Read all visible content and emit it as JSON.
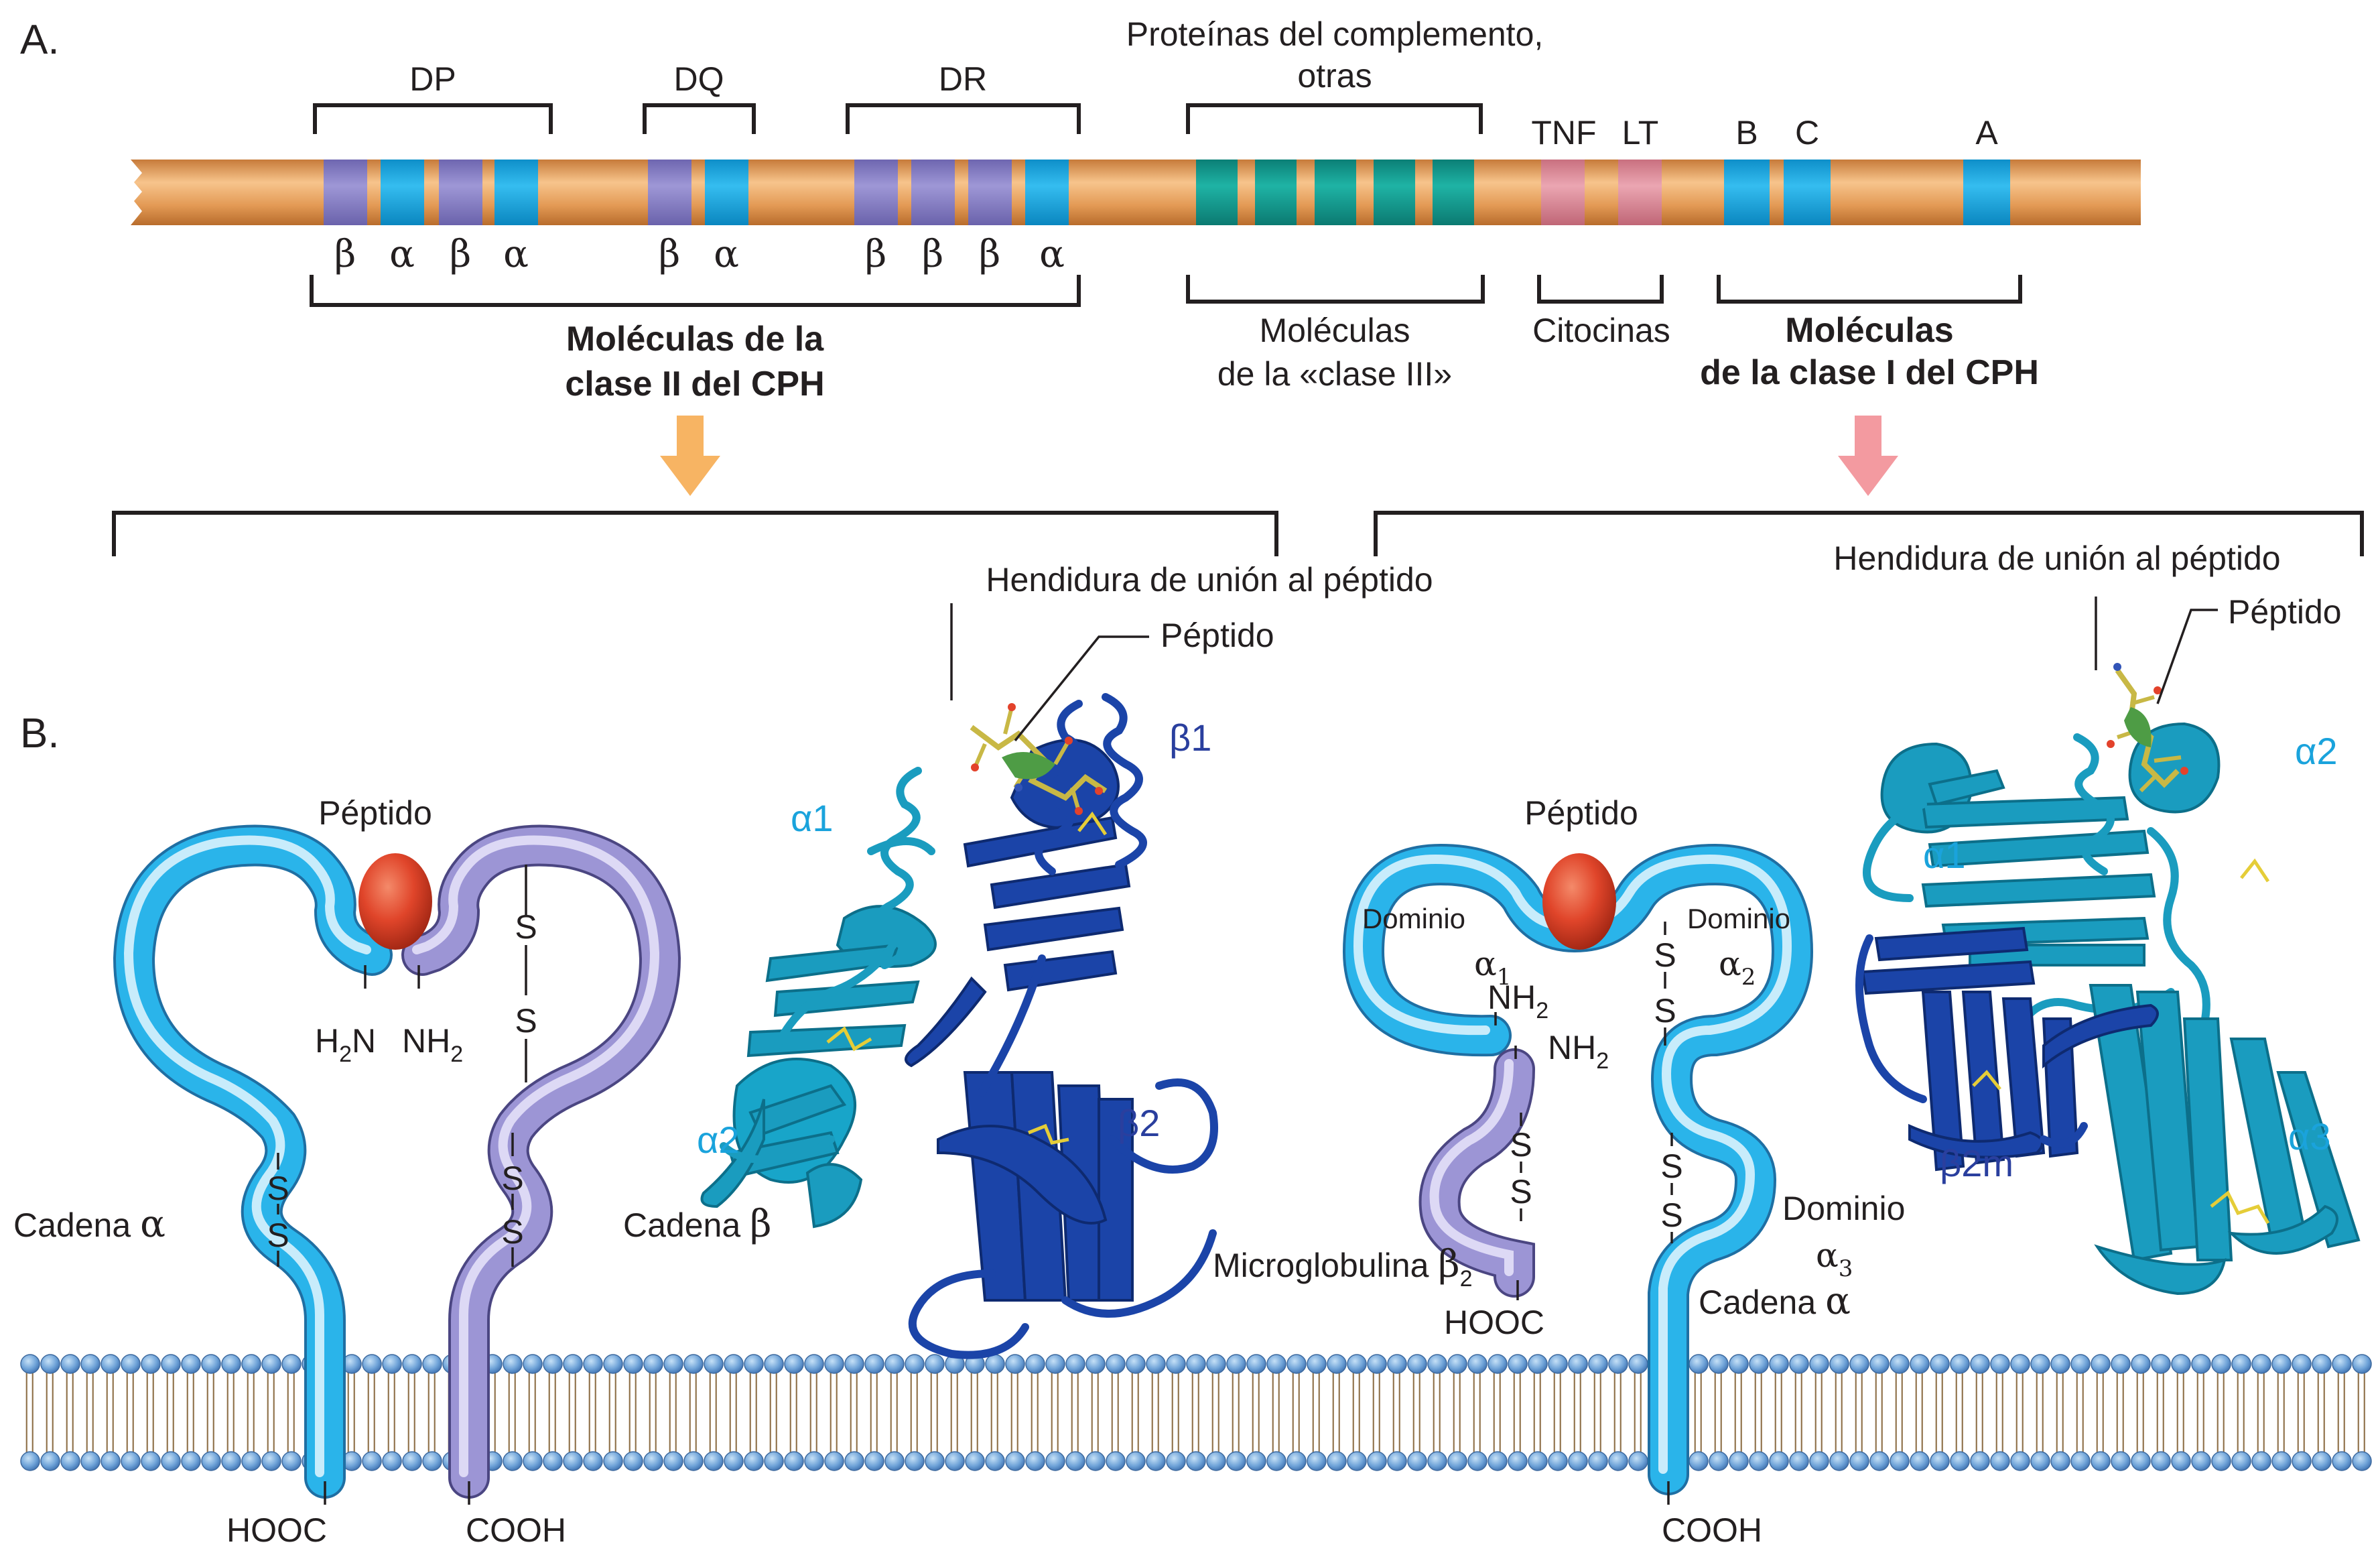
{
  "part_a": {
    "panel_label": "A.",
    "groups": {
      "dp": "DP",
      "dq": "DQ",
      "dr": "DR",
      "complement_line1": "Proteínas del complemento,",
      "complement_line2": "otras",
      "tnf": "TNF",
      "lt": "LT",
      "b": "B",
      "c": "C",
      "a": "A"
    },
    "greek_labels": {
      "dp": [
        "β",
        "α",
        "β",
        "α"
      ],
      "dq": [
        "β",
        "α"
      ],
      "dr": [
        "β",
        "β",
        "β",
        "α"
      ]
    },
    "class_labels": {
      "class2_line1": "Moléculas de la",
      "class2_line2": "clase II del CPH",
      "class3_line1": "Moléculas",
      "class3_line2": "de la «clase III»",
      "cytokines": "Citocinas",
      "class1_line1": "Moléculas",
      "class1_line2": "de la clase I del CPH"
    },
    "colors": {
      "chromosome": "#e0a05e",
      "class2_beta": "#8a83c6",
      "alpha": "#1ba6dd",
      "complement": "#139a8e",
      "cytokine": "#d98a9a",
      "arrow_class2": "#f7b463",
      "arrow_class1": "#f39aa0"
    }
  },
  "part_b": {
    "panel_label": "B.",
    "class2": {
      "peptide": "Péptido",
      "h2n": "H",
      "h2n_sub": "2",
      "h2n_end": "N",
      "nh2": "NH",
      "nh2_sub": "2",
      "chain_alpha": "Cadena",
      "chain_alpha_greek": "α",
      "chain_beta": "Cadena",
      "chain_beta_greek": "β",
      "hooc": "HOOC",
      "cooh": "COOH",
      "s": "S",
      "cleft": "Hendidura de unión al péptido",
      "peptide_struct": "Péptido",
      "a1": "α1",
      "b1": "β1",
      "a2": "α2",
      "b2": "β2"
    },
    "class1": {
      "peptide": "Péptido",
      "domain": "Dominio",
      "alpha1_greek": "α",
      "alpha1_sub": "1",
      "alpha2_greek": "α",
      "alpha2_sub": "2",
      "alpha3_greek": "α",
      "alpha3_sub": "3",
      "nh2_a": "NH",
      "nh2_a_sub": "2",
      "nh2_b": "NH",
      "nh2_b_sub": "2",
      "microglobulin": "Microglobulina",
      "microglobulin_greek": "β",
      "microglobulin_sub": "2",
      "hooc": "HOOC",
      "chain": "Cadena",
      "chain_greek": "α",
      "cooh": "COOH",
      "s": "S",
      "cleft": "Hendidura de unión al péptido",
      "peptide_struct": "Péptido",
      "a1": "α1",
      "a2": "α2",
      "a3": "α3",
      "b2m": "β2m"
    }
  }
}
